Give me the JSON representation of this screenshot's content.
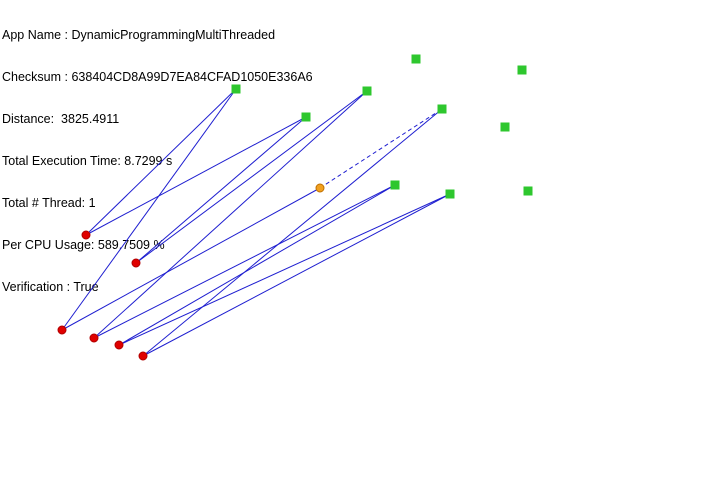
{
  "info": {
    "app_name": "App Name : DynamicProgrammingMultiThreaded",
    "checksum": "Checksum : 638404CD8A99D7EA84CFAD1050E336A6",
    "distance": "Distance:  3825.4911",
    "total_execution_time": "Total Execution Time: 8.7299 s",
    "total_threads": "Total # Thread: 1",
    "per_cpu_usage": "Per CPU Usage: 589.7509 %",
    "verification": "Verification : True"
  },
  "colors": {
    "background": "#ffffff",
    "route_line": "#1f1fd0",
    "source_marker": "#e00000",
    "source_marker_outline": "#b00000",
    "destination_marker": "#2ec72e",
    "current_marker": "#f0a020",
    "current_marker_outline": "#c07000"
  }
}
